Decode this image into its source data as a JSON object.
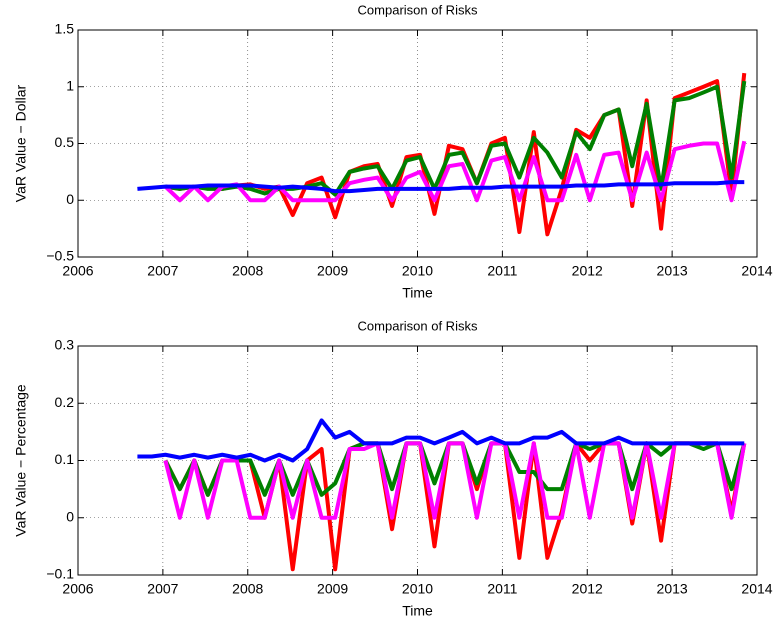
{
  "chart_data": [
    {
      "type": "line",
      "title": "Comparison of Risks",
      "xlabel": "Time",
      "ylabel": "VaR Value − Dollar",
      "x": [
        2006.7,
        2006.87,
        2007.03,
        2007.2,
        2007.37,
        2007.53,
        2007.7,
        2007.87,
        2008.03,
        2008.2,
        2008.37,
        2008.53,
        2008.7,
        2008.87,
        2009.03,
        2009.2,
        2009.37,
        2009.53,
        2009.7,
        2009.87,
        2010.03,
        2010.2,
        2010.37,
        2010.53,
        2010.7,
        2010.87,
        2011.03,
        2011.2,
        2011.37,
        2011.53,
        2011.7,
        2011.87,
        2012.03,
        2012.2,
        2012.37,
        2012.53,
        2012.7,
        2012.87,
        2013.03,
        2013.2,
        2013.37,
        2013.53,
        2013.7,
        2013.85
      ],
      "series": [
        {
          "color": "#ff0000",
          "values": [
            null,
            null,
            0.12,
            0.1,
            0.12,
            0.12,
            0.1,
            0.13,
            0.14,
            0.1,
            0.12,
            -0.13,
            0.15,
            0.2,
            -0.15,
            0.25,
            0.3,
            0.32,
            -0.05,
            0.38,
            0.4,
            -0.12,
            0.48,
            0.45,
            0.15,
            0.5,
            0.55,
            -0.28,
            0.6,
            -0.3,
            0.1,
            0.62,
            0.55,
            0.75,
            0.8,
            -0.05,
            0.88,
            -0.25,
            0.9,
            0.95,
            1.0,
            1.05,
            0.05,
            1.12
          ]
        },
        {
          "color": "#008000",
          "values": [
            null,
            null,
            0.12,
            0.1,
            0.12,
            0.1,
            0.1,
            0.12,
            0.1,
            0.06,
            0.1,
            0.1,
            0.12,
            0.15,
            0.05,
            0.25,
            0.28,
            0.3,
            0.1,
            0.35,
            0.38,
            0.1,
            0.4,
            0.42,
            0.15,
            0.48,
            0.5,
            0.2,
            0.55,
            0.42,
            0.2,
            0.6,
            0.45,
            0.75,
            0.8,
            0.3,
            0.85,
            0.1,
            0.88,
            0.9,
            0.95,
            1.0,
            0.2,
            1.05
          ]
        },
        {
          "color": "#ff00ff",
          "values": [
            null,
            null,
            0.12,
            0.0,
            0.12,
            0.0,
            0.12,
            0.14,
            0.0,
            0.0,
            0.12,
            0.0,
            0.0,
            0.0,
            0.0,
            0.15,
            0.18,
            0.2,
            0.0,
            0.2,
            0.25,
            0.0,
            0.3,
            0.32,
            0.0,
            0.35,
            0.38,
            0.0,
            0.38,
            0.0,
            0.0,
            0.4,
            0.0,
            0.4,
            0.42,
            0.0,
            0.42,
            0.0,
            0.45,
            0.48,
            0.5,
            0.5,
            0.0,
            0.52
          ]
        },
        {
          "color": "#0000ff",
          "values": [
            0.1,
            0.11,
            0.12,
            0.12,
            0.12,
            0.13,
            0.13,
            0.13,
            0.13,
            0.12,
            0.11,
            0.12,
            0.11,
            0.1,
            0.08,
            0.08,
            0.09,
            0.1,
            0.1,
            0.1,
            0.1,
            0.1,
            0.1,
            0.11,
            0.11,
            0.11,
            0.12,
            0.12,
            0.12,
            0.12,
            0.12,
            0.13,
            0.13,
            0.13,
            0.14,
            0.14,
            0.14,
            0.14,
            0.15,
            0.15,
            0.15,
            0.15,
            0.16,
            0.16
          ]
        }
      ],
      "xlim": [
        2006,
        2014
      ],
      "xticks": [
        2006,
        2007,
        2008,
        2009,
        2010,
        2011,
        2012,
        2013,
        2014
      ],
      "ylim": [
        -0.5,
        1.5
      ],
      "yticks": [
        {
          "value": -0.5,
          "label": "−0.5"
        },
        0,
        0.5,
        1,
        1.5
      ],
      "grid": true
    },
    {
      "type": "line",
      "title": "Comparison of Risks",
      "xlabel": "Time",
      "ylabel": "VaR Value − Percentage",
      "x": [
        2006.7,
        2006.87,
        2007.03,
        2007.2,
        2007.37,
        2007.53,
        2007.7,
        2007.87,
        2008.03,
        2008.2,
        2008.37,
        2008.53,
        2008.7,
        2008.87,
        2009.03,
        2009.2,
        2009.37,
        2009.53,
        2009.7,
        2009.87,
        2010.03,
        2010.2,
        2010.37,
        2010.53,
        2010.7,
        2010.87,
        2011.03,
        2011.2,
        2011.37,
        2011.53,
        2011.7,
        2011.87,
        2012.03,
        2012.2,
        2012.37,
        2012.53,
        2012.7,
        2012.87,
        2013.03,
        2013.2,
        2013.37,
        2013.53,
        2013.7,
        2013.85
      ],
      "series": [
        {
          "color": "#ff0000",
          "values": [
            null,
            null,
            0.1,
            0.05,
            0.1,
            0.04,
            0.1,
            0.1,
            0.1,
            0.0,
            0.1,
            -0.09,
            0.1,
            0.12,
            -0.09,
            0.12,
            0.13,
            0.13,
            -0.02,
            0.13,
            0.13,
            -0.05,
            0.13,
            0.13,
            0.05,
            0.13,
            0.13,
            -0.07,
            0.13,
            -0.07,
            0.01,
            0.13,
            0.1,
            0.13,
            0.13,
            -0.01,
            0.13,
            -0.04,
            0.13,
            0.13,
            0.13,
            0.13,
            0.01,
            0.13
          ]
        },
        {
          "color": "#008000",
          "values": [
            null,
            null,
            0.1,
            0.05,
            0.1,
            0.04,
            0.1,
            0.1,
            0.1,
            0.04,
            0.1,
            0.04,
            0.1,
            0.04,
            0.06,
            0.12,
            0.13,
            0.13,
            0.05,
            0.13,
            0.13,
            0.06,
            0.13,
            0.13,
            0.06,
            0.13,
            0.13,
            0.08,
            0.08,
            0.05,
            0.05,
            0.13,
            0.12,
            0.13,
            0.13,
            0.05,
            0.13,
            0.11,
            0.13,
            0.13,
            0.12,
            0.13,
            0.05,
            0.13
          ]
        },
        {
          "color": "#ff00ff",
          "values": [
            null,
            null,
            0.1,
            0.0,
            0.1,
            0.0,
            0.1,
            0.1,
            0.0,
            0.0,
            0.1,
            0.0,
            0.1,
            0.0,
            0.0,
            0.12,
            0.12,
            0.13,
            0.0,
            0.13,
            0.13,
            0.0,
            0.13,
            0.13,
            0.0,
            0.13,
            0.13,
            0.0,
            0.13,
            0.0,
            0.0,
            0.13,
            0.0,
            0.13,
            0.13,
            0.0,
            0.13,
            0.0,
            0.13,
            0.13,
            0.13,
            0.13,
            0.0,
            0.13
          ]
        },
        {
          "color": "#0000ff",
          "values": [
            0.107,
            0.107,
            0.11,
            0.105,
            0.11,
            0.105,
            0.11,
            0.105,
            0.11,
            0.1,
            0.11,
            0.1,
            0.12,
            0.17,
            0.14,
            0.15,
            0.13,
            0.13,
            0.13,
            0.14,
            0.14,
            0.13,
            0.14,
            0.15,
            0.13,
            0.14,
            0.13,
            0.13,
            0.14,
            0.14,
            0.15,
            0.13,
            0.13,
            0.13,
            0.14,
            0.13,
            0.13,
            0.13,
            0.13,
            0.13,
            0.13,
            0.13,
            0.13,
            0.13
          ]
        }
      ],
      "xlim": [
        2006,
        2014
      ],
      "xticks": [
        2006,
        2007,
        2008,
        2009,
        2010,
        2011,
        2012,
        2013,
        2014
      ],
      "ylim": [
        -0.1,
        0.3
      ],
      "yticks": [
        {
          "value": -0.1,
          "label": "−0.1"
        },
        0,
        0.1,
        0.2,
        0.3
      ],
      "grid": true
    }
  ]
}
